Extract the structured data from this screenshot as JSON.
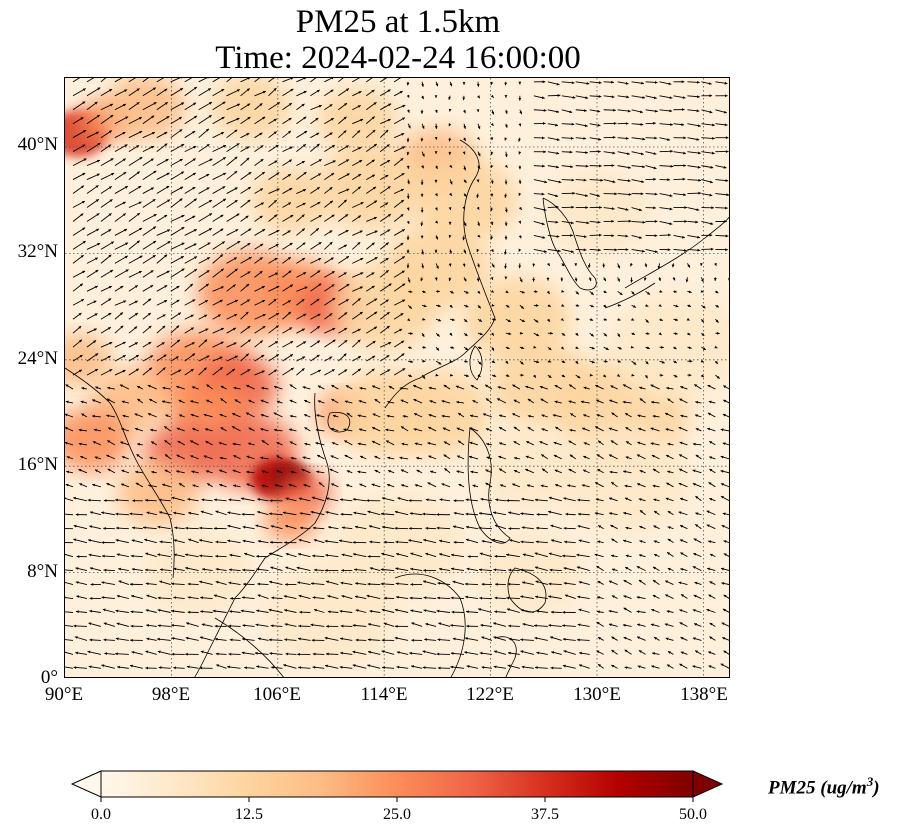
{
  "title": {
    "line1": "PM25 at 1.5km",
    "line2": "Time: 2024-02-24 16:00:00"
  },
  "axes": {
    "x_ticks": [
      "90°E",
      "98°E",
      "106°E",
      "114°E",
      "122°E",
      "130°E",
      "138°E"
    ],
    "y_ticks": [
      "40°N",
      "32°N",
      "24°N",
      "16°N",
      "8°N",
      "0°"
    ]
  },
  "colorbar": {
    "label": "PM25 (ug/m",
    "label_sup": "3",
    "label_close": ")",
    "ticks": [
      "0.0",
      "12.5",
      "25.0",
      "37.5",
      "50.0"
    ],
    "colormap": "OrRd",
    "colors": [
      "#fff7ec",
      "#fee8c8",
      "#fdd49e",
      "#fdbb84",
      "#fc8d59",
      "#ef6548",
      "#d7301f",
      "#b30000",
      "#7f0000"
    ],
    "range": [
      0,
      50
    ],
    "extend": "both"
  },
  "map": {
    "extent_lon": [
      90,
      140
    ],
    "extent_lat": [
      0,
      45
    ],
    "gridlines": "dotted",
    "coastlines": true,
    "wind_vectors": true
  }
}
